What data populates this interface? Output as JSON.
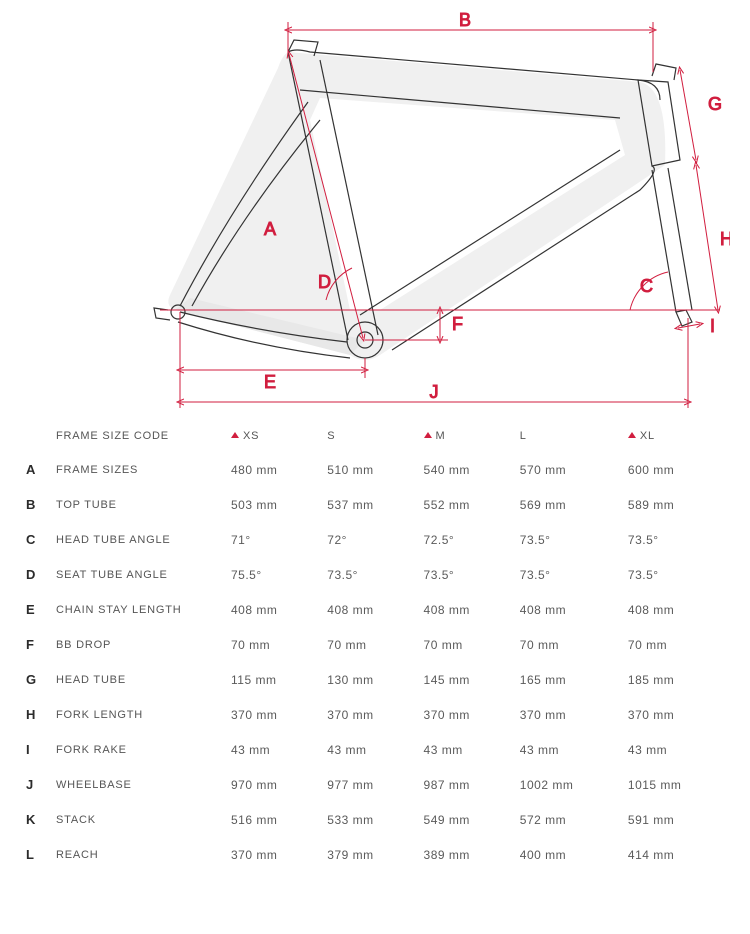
{
  "colors": {
    "dim": "#d11e3f",
    "frame_stroke": "#333333",
    "frame_fill": "#f4f4f4",
    "frame_shadow": "#c8c8c8",
    "text": "#5a5a5a",
    "code_text": "#2b2b2b",
    "bg": "#ffffff"
  },
  "diagram_labels": {
    "A": "A",
    "B": "B",
    "C": "C",
    "D": "D",
    "E": "E",
    "F": "F",
    "G": "G",
    "H": "H",
    "I": "I",
    "J": "J"
  },
  "table": {
    "header_label": "FRAME SIZE CODE",
    "sizes": [
      {
        "label": "XS",
        "accent": true
      },
      {
        "label": "S",
        "accent": false
      },
      {
        "label": "M",
        "accent": true
      },
      {
        "label": "L",
        "accent": false
      },
      {
        "label": "XL",
        "accent": true
      }
    ],
    "rows": [
      {
        "code": "A",
        "name": "FRAME SIZES",
        "vals": [
          "480 mm",
          "510 mm",
          "540 mm",
          "570 mm",
          "600 mm"
        ]
      },
      {
        "code": "B",
        "name": "TOP TUBE",
        "vals": [
          "503 mm",
          "537 mm",
          "552 mm",
          "569 mm",
          "589 mm"
        ]
      },
      {
        "code": "C",
        "name": "HEAD TUBE ANGLE",
        "vals": [
          "71°",
          "72°",
          "72.5°",
          "73.5°",
          "73.5°"
        ]
      },
      {
        "code": "D",
        "name": "SEAT TUBE ANGLE",
        "vals": [
          "75.5°",
          "73.5°",
          "73.5°",
          "73.5°",
          "73.5°"
        ]
      },
      {
        "code": "E",
        "name": "CHAIN STAY LENGTH",
        "vals": [
          "408 mm",
          "408 mm",
          "408 mm",
          "408 mm",
          "408 mm"
        ]
      },
      {
        "code": "F",
        "name": "BB DROP",
        "vals": [
          "70 mm",
          "70 mm",
          "70 mm",
          "70 mm",
          "70 mm"
        ]
      },
      {
        "code": "G",
        "name": "HEAD TUBE",
        "vals": [
          "115 mm",
          "130 mm",
          "145 mm",
          "165 mm",
          "185 mm"
        ]
      },
      {
        "code": "H",
        "name": "FORK LENGTH",
        "vals": [
          "370 mm",
          "370 mm",
          "370 mm",
          "370 mm",
          "370 mm"
        ]
      },
      {
        "code": "I",
        "name": "FORK RAKE",
        "vals": [
          "43 mm",
          "43 mm",
          "43 mm",
          "43 mm",
          "43 mm"
        ]
      },
      {
        "code": "J",
        "name": "WHEELBASE",
        "vals": [
          "970 mm",
          "977 mm",
          "987 mm",
          "1002 mm",
          "1015 mm"
        ]
      },
      {
        "code": "K",
        "name": "STACK",
        "vals": [
          "516 mm",
          "533 mm",
          "549 mm",
          "572 mm",
          "591 mm"
        ]
      },
      {
        "code": "L",
        "name": "REACH",
        "vals": [
          "370 mm",
          "379 mm",
          "389 mm",
          "400 mm",
          "414 mm"
        ]
      }
    ]
  }
}
